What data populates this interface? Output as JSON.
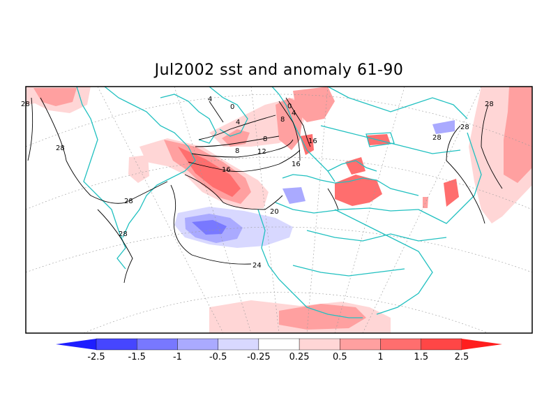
{
  "title": "Jul2002 sst and anomaly 61-90",
  "colors": {
    "coastline": "#20c0c0",
    "contour": "#000000",
    "gridline": "#999999",
    "frame": "#000000"
  },
  "contour_labels": [
    "28",
    "28",
    "28",
    "28",
    "28",
    "24",
    "20",
    "16",
    "16",
    "16",
    "12",
    "8",
    "8",
    "8",
    "4",
    "4",
    "4",
    "0",
    "0",
    "28",
    "28"
  ],
  "colorbar": {
    "labels": [
      "-2.5",
      "-1.5",
      "-1",
      "-0.5",
      "-0.25",
      "0.25",
      "0.5",
      "1",
      "1.5",
      "2.5"
    ],
    "colors": [
      "#1e1eff",
      "#4646ff",
      "#7878ff",
      "#aaaaff",
      "#d8d8ff",
      "#ffffff",
      "#ffd6d6",
      "#ffa0a0",
      "#ff6e6e",
      "#ff4646",
      "#ff1e1e"
    ]
  }
}
